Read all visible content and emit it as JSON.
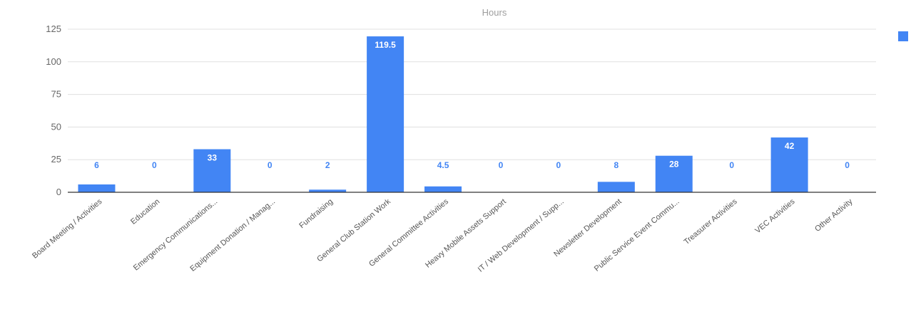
{
  "chart_data": {
    "type": "bar",
    "subtitle": "Hours",
    "categories": [
      "Board Meeting / Activities",
      "Education",
      "Emergency Communications...",
      "Equipment Donation / Manag...",
      "Fundraising",
      "General Club Station Work",
      "General Committee Activities",
      "Heavy Mobile Assets Support",
      "IT / Web Development / Supp...",
      "Newsletter Development",
      "Public Service Event Commu...",
      "Treasurer Activities",
      "VEC Activities",
      "Other Activity"
    ],
    "values": [
      6,
      0,
      33,
      0,
      2,
      119.5,
      4.5,
      0,
      0,
      8,
      28,
      0,
      42,
      0
    ],
    "data_labels": [
      "6",
      "0",
      "33",
      "0",
      "2",
      "119.5",
      "4.5",
      "0",
      "0",
      "8",
      "28",
      "0",
      "42",
      "0"
    ],
    "ylim": [
      0,
      125
    ],
    "yticks": [
      0,
      25,
      50,
      75,
      100,
      125
    ],
    "grid": true,
    "legend": "right",
    "colors": {
      "bar": "#4285f4",
      "label_outside": "#4285f4",
      "label_inside": "#ffffff",
      "grid": "#e0e0e0",
      "axis": "#333333"
    }
  }
}
